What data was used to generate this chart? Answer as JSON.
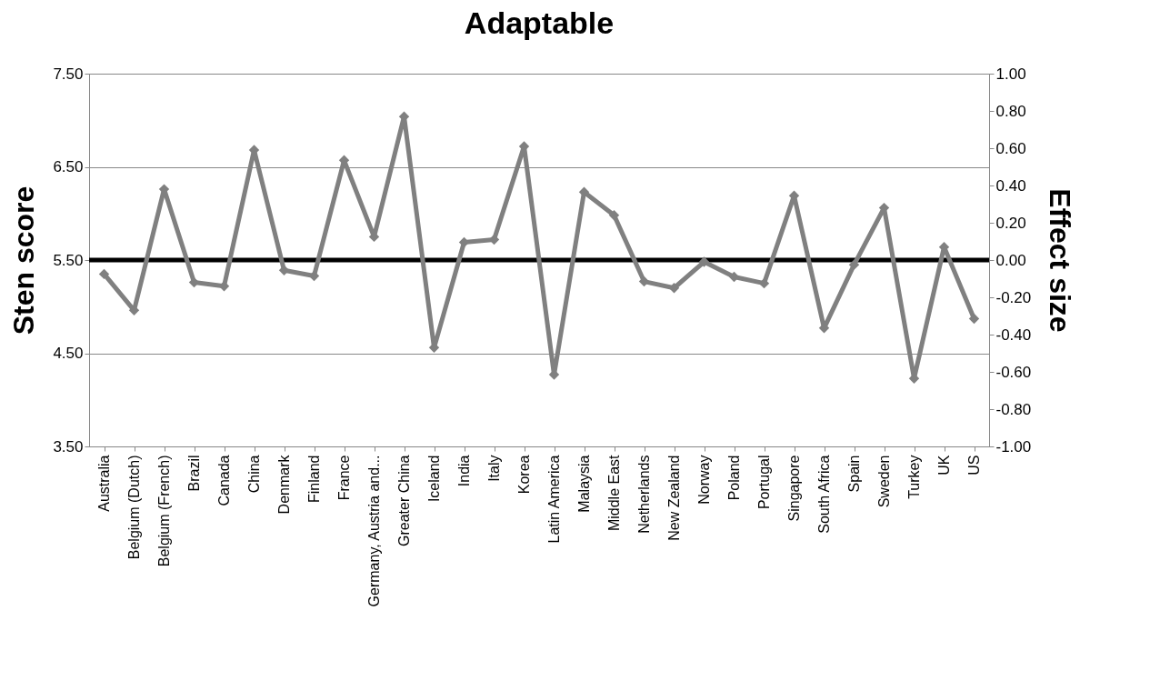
{
  "chart_data": {
    "type": "line",
    "title": "Adaptable",
    "ylabel": "Sten score",
    "y2label": "Effect size",
    "categories": [
      "Australia",
      "Belgium (Dutch)",
      "Belgium (French)",
      "Brazil",
      "Canada",
      "China",
      "Denmark",
      "Finland",
      "France",
      "Germany, Austria and...",
      "Greater China",
      "Iceland",
      "India",
      "Italy",
      "Korea",
      "Latin America",
      "Malaysia",
      "Middle East",
      "Netherlands",
      "New Zealand",
      "Norway",
      "Poland",
      "Portugal",
      "Singapore",
      "South Africa",
      "Spain",
      "Sweden",
      "Turkey",
      "UK",
      "US"
    ],
    "series": [
      {
        "color": "#808080",
        "values": [
          5.35,
          4.96,
          6.26,
          5.26,
          5.22,
          6.68,
          5.39,
          5.33,
          6.57,
          5.75,
          7.04,
          4.56,
          5.69,
          5.72,
          6.72,
          4.27,
          6.23,
          5.98,
          5.27,
          5.2,
          5.48,
          5.32,
          5.25,
          6.19,
          4.77,
          5.45,
          6.06,
          4.23,
          5.64,
          4.87
        ]
      }
    ],
    "ylim": [
      3.5,
      7.5
    ],
    "yticks": [
      {
        "value": 3.5,
        "label": "3.50"
      },
      {
        "value": 4.5,
        "label": "4.50"
      },
      {
        "value": 5.5,
        "label": "5.50"
      },
      {
        "value": 6.5,
        "label": "6.50"
      },
      {
        "value": 7.5,
        "label": "7.50"
      }
    ],
    "y2lim": [
      -1,
      1
    ],
    "y2ticks": [
      {
        "value": -1,
        "label": "-1.00"
      },
      {
        "value": -0.8,
        "label": "-0.80"
      },
      {
        "value": -0.6,
        "label": "-0.60"
      },
      {
        "value": -0.4,
        "label": "-0.40"
      },
      {
        "value": -0.2,
        "label": "-0.20"
      },
      {
        "value": 0,
        "label": "0.00"
      },
      {
        "value": 0.2,
        "label": "0.20"
      },
      {
        "value": 0.4,
        "label": "0.40"
      },
      {
        "value": 0.6,
        "label": "0.60"
      },
      {
        "value": 0.8,
        "label": "0.80"
      },
      {
        "value": 1,
        "label": "1.00"
      }
    ],
    "ref_lines": [
      {
        "axis": "y",
        "value": 5.5,
        "color": "#000000"
      }
    ],
    "grid": "y",
    "marker": "diamond",
    "line_style": "solid"
  }
}
